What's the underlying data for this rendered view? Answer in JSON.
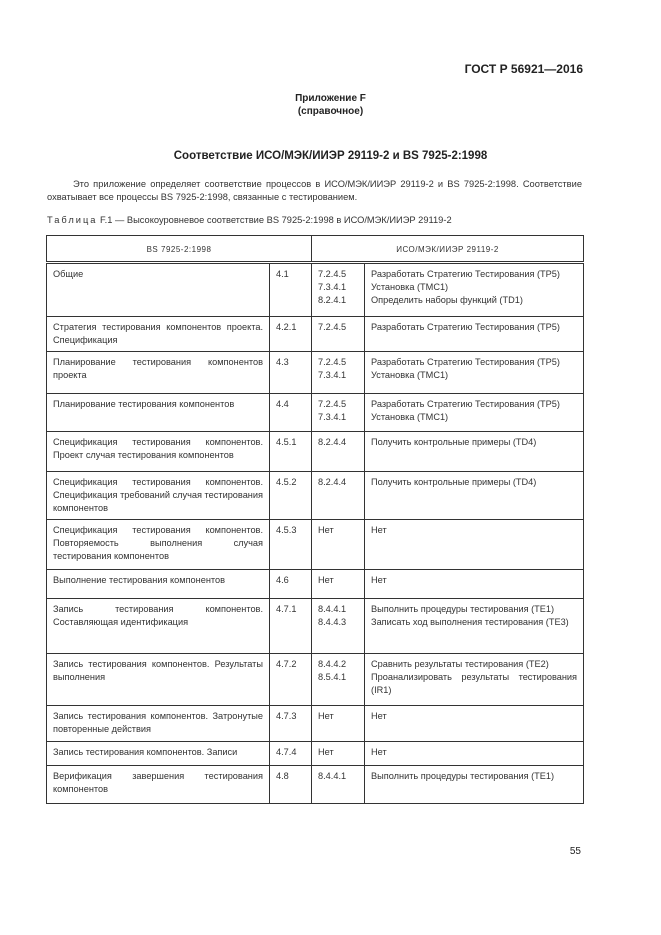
{
  "header": {
    "doc_code": "ГОСТ Р 56921—2016"
  },
  "appendix": {
    "title": "Приложение F",
    "subtitle": "(справочное)"
  },
  "section_title": "Соответствие ИСО/МЭК/ИИЭР 29119-2 и BS 7925-2:1998",
  "intro": "Это приложение определяет соответствие процессов в ИСО/МЭК/ИИЭР 29119-2 и BS 7925-2:1998. Соответствие охватывает все процессы BS 7925-2:1998, связанные с тестированием.",
  "caption": {
    "label": "Таблица",
    "text": " F.1 — Высокоуровневое соответствие BS 7925-2:1998 в ИСО/МЭК/ИИЭР 29119-2"
  },
  "table": {
    "headers": [
      "BS 7925-2:1998",
      "ИСО/МЭК/ИИЭР 29119-2"
    ],
    "rows": [
      {
        "bs": "Общие",
        "bs_ref": "4.1",
        "iso_refs": [
          "7.2.4.5",
          "7.3.4.1",
          "8.2.4.1"
        ],
        "iso": [
          "Разработать Стратегию Тестирования (TP5)",
          "Установка (TMC1)",
          "Определить наборы функций (TD1)"
        ]
      },
      {
        "bs": "Стратегия тестирования компонентов проекта. Спецификация",
        "bs_ref": "4.2.1",
        "iso_refs": [
          "7.2.4.5"
        ],
        "iso": [
          "Разработать Стратегию Тестирования (TP5)"
        ]
      },
      {
        "bs": "Планирование тестирования компонентов проекта",
        "bs_ref": "4.3",
        "iso_refs": [
          "7.2.4.5",
          "7.3.4.1"
        ],
        "iso": [
          "Разработать Стратегию Тестирования (TP5)",
          "Установка (TMC1)"
        ]
      },
      {
        "bs": "Планирование тестирования компонентов",
        "bs_ref": "4.4",
        "iso_refs": [
          "7.2.4.5",
          "7.3.4.1"
        ],
        "iso": [
          "Разработать Стратегию Тестирования (TP5)",
          "Установка (TMC1)"
        ]
      },
      {
        "bs": "Спецификация тестирования компонентов. Проект случая тестирования компонентов",
        "bs_ref": "4.5.1",
        "iso_refs": [
          "8.2.4.4"
        ],
        "iso": [
          "Получить контрольные примеры (TD4)"
        ]
      },
      {
        "bs": "Спецификация тестирования компонентов. Спецификация требований случая тестирования компонентов",
        "bs_ref": "4.5.2",
        "iso_refs": [
          "8.2.4.4"
        ],
        "iso": [
          "Получить контрольные примеры (TD4)"
        ]
      },
      {
        "bs": "Спецификация тестирования компонентов. Повторяемость выполнения случая тестирования компонентов",
        "bs_ref": "4.5.3",
        "iso_refs": [
          "Нет"
        ],
        "iso": [
          "Нет"
        ]
      },
      {
        "bs": "Выполнение тестирования компонентов",
        "bs_ref": "4.6",
        "iso_refs": [
          "Нет"
        ],
        "iso": [
          "Нет"
        ]
      },
      {
        "bs": "Запись тестирования компонентов. Составляющая идентификация",
        "bs_ref": "4.7.1",
        "iso_refs": [
          "8.4.4.1",
          "8.4.4.3"
        ],
        "iso": [
          "Выполнить процедуры тестирования (TE1)",
          "Записать ход выполнения тестирования (TE3)"
        ]
      },
      {
        "bs": "Запись тестирования компонентов. Результаты выполнения",
        "bs_ref": "4.7.2",
        "iso_refs": [
          "8.4.4.2",
          "8.5.4.1"
        ],
        "iso": [
          "Сравнить результаты тестирования (TE2)",
          "Проанализировать результаты тестирования (IR1)"
        ]
      },
      {
        "bs": "Запись тестирования компонентов. Затронутые повторенные действия",
        "bs_ref": "4.7.3",
        "iso_refs": [
          "Нет"
        ],
        "iso": [
          "Нет"
        ]
      },
      {
        "bs": "Запись тестирования компонентов. Записи",
        "bs_ref": "4.7.4",
        "iso_refs": [
          "Нет"
        ],
        "iso": [
          "Нет"
        ]
      },
      {
        "bs": "Верификация завершения тестирования компонентов",
        "bs_ref": "4.8",
        "iso_refs": [
          "8.4.4.1"
        ],
        "iso": [
          "Выполнить процедуры тестирования (TE1)"
        ]
      }
    ]
  },
  "footer": {
    "page_number": "55"
  }
}
